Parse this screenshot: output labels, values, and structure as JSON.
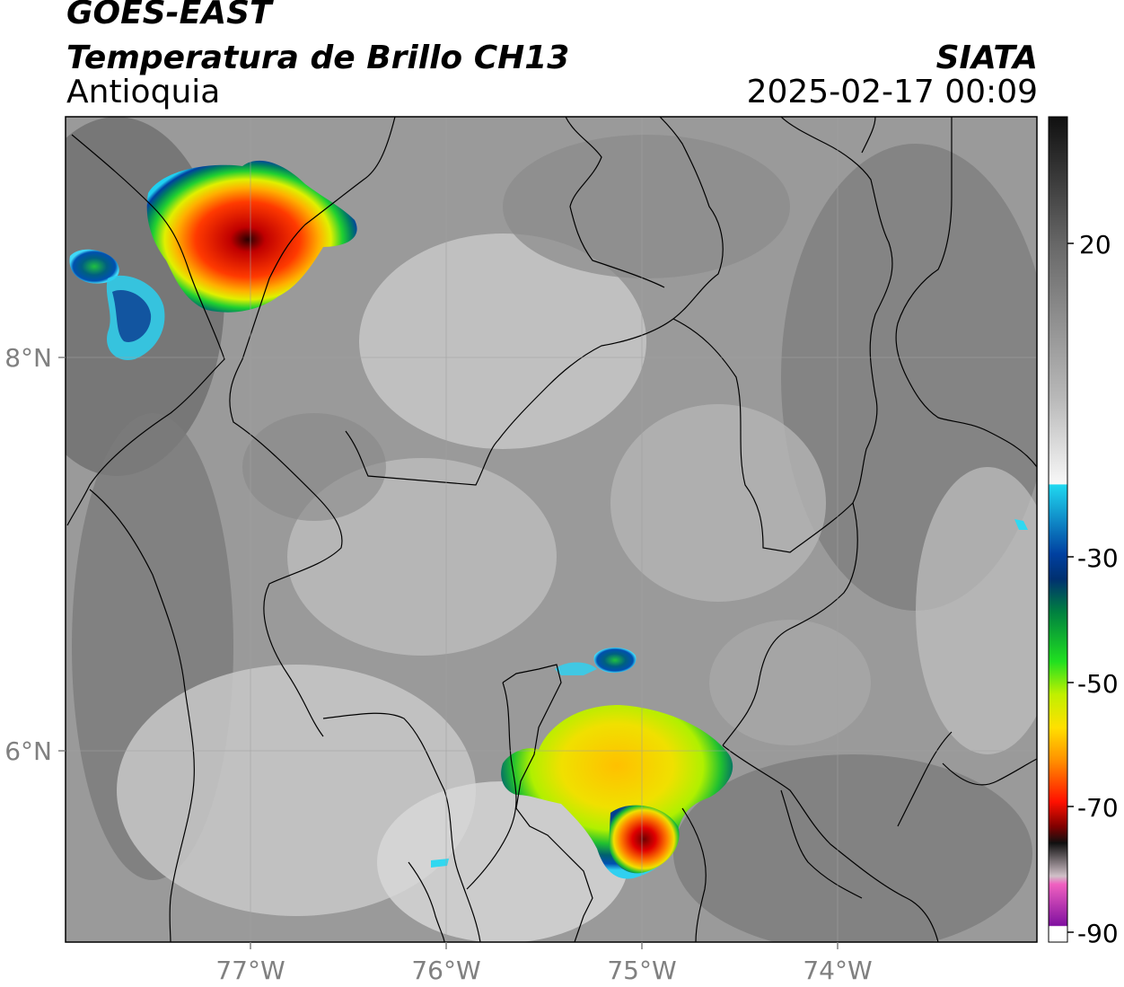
{
  "header": {
    "line1": "GOES-EAST",
    "line2": "Temperatura de Brillo CH13",
    "region": "Antioquia",
    "org": "SIATA",
    "datetime": "2025-02-17 00:09"
  },
  "axes": {
    "x_ticks": [
      "77°W",
      "76°W",
      "75°W",
      "74°W"
    ],
    "y_ticks": [
      "8°N",
      "6°N"
    ]
  },
  "colorbar": {
    "ticks": [
      "20",
      "-30",
      "-50",
      "-70",
      "-90"
    ]
  }
}
